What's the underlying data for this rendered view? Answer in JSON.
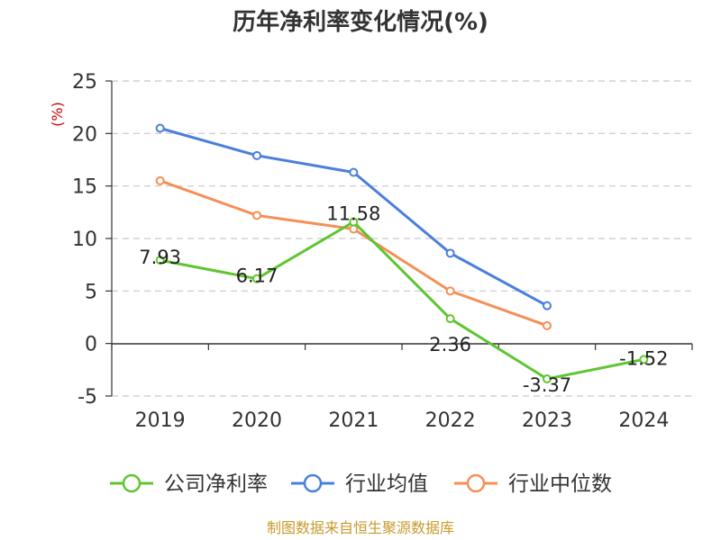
{
  "chart_data": {
    "type": "line",
    "title": "历年净利率变化情况(%)",
    "ylabel": "(%)",
    "categories": [
      "2019",
      "2020",
      "2021",
      "2022",
      "2023",
      "2024"
    ],
    "yticks": [
      25,
      20,
      15,
      10,
      5,
      0,
      -5
    ],
    "ylim": [
      -5,
      25
    ],
    "grid": true,
    "legend_position": "bottom",
    "series": [
      {
        "name": "公司净利率",
        "color": "#5fc531",
        "values": [
          7.93,
          6.17,
          11.58,
          2.36,
          -3.37,
          -1.52
        ],
        "labels": [
          "7.93",
          "6.17",
          "11.58",
          "2.36",
          "-3.37",
          "-1.52"
        ]
      },
      {
        "name": "行业均值",
        "color": "#4a7fdb",
        "values": [
          20.5,
          17.9,
          16.3,
          8.6,
          3.6,
          null
        ]
      },
      {
        "name": "行业中位数",
        "color": "#f58f57",
        "values": [
          15.5,
          12.2,
          10.9,
          5.0,
          1.7,
          null
        ]
      }
    ],
    "source": "制图数据来自恒生聚源数据库"
  }
}
